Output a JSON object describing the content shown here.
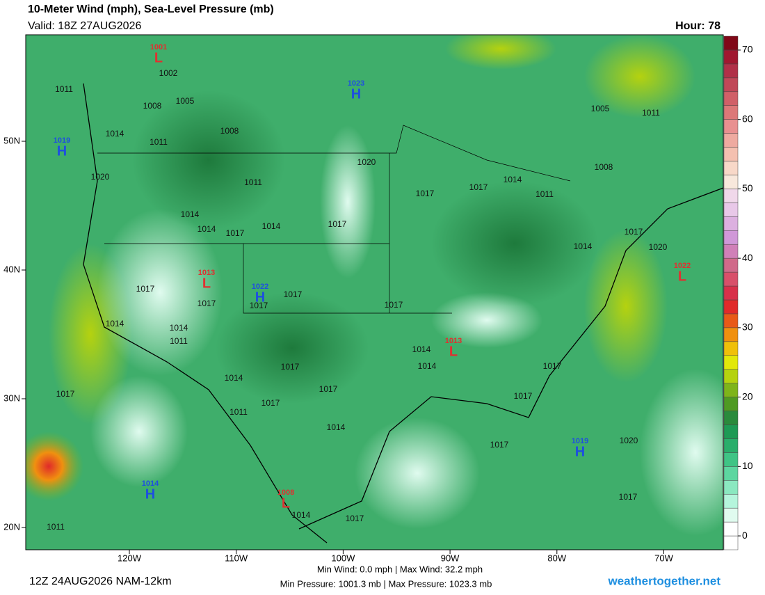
{
  "header": {
    "title": "10-Meter Wind (mph), Sea-Level Pressure (mb)",
    "valid": "Valid: 18Z 27AUG2026",
    "hour": "Hour: 78"
  },
  "map": {
    "lon_ticks": [
      {
        "value": -120,
        "label": "120W"
      },
      {
        "value": -110,
        "label": "110W"
      },
      {
        "value": -100,
        "label": "100W"
      },
      {
        "value": -90,
        "label": "90W"
      },
      {
        "value": -80,
        "label": "80W"
      },
      {
        "value": -70,
        "label": "70W"
      }
    ],
    "lat_ticks": [
      {
        "value": 50,
        "label": "50N"
      },
      {
        "value": 40,
        "label": "40N"
      },
      {
        "value": 30,
        "label": "30N"
      },
      {
        "value": 20,
        "label": "20N"
      }
    ],
    "centers": [
      {
        "kind": "L",
        "value": "1001"
      },
      {
        "kind": "H",
        "value": "1023"
      },
      {
        "kind": "H",
        "value": "1019"
      },
      {
        "kind": "L",
        "value": "1013"
      },
      {
        "kind": "H",
        "value": "1022"
      },
      {
        "kind": "L",
        "value": "1022"
      },
      {
        "kind": "L",
        "value": "1013"
      },
      {
        "kind": "H",
        "value": "1019"
      },
      {
        "kind": "H",
        "value": "1014"
      },
      {
        "kind": "L",
        "value": "1008"
      }
    ],
    "isobar_labels": [
      "1002",
      "1011",
      "1005",
      "1008",
      "1014",
      "1011",
      "1008",
      "1020",
      "1011",
      "1014",
      "1014",
      "1017",
      "1014",
      "1017",
      "1020",
      "1017",
      "1017",
      "1014",
      "1011",
      "1005",
      "1011",
      "1008",
      "1017",
      "1014",
      "1020",
      "1017",
      "1017",
      "1017",
      "1017",
      "1017",
      "1014",
      "1014",
      "1011",
      "1014",
      "1014",
      "1017",
      "1014",
      "1017",
      "1017",
      "1011",
      "1014",
      "1017",
      "1017",
      "1017",
      "1017",
      "1020",
      "1017",
      "1014",
      "1017",
      "1011"
    ]
  },
  "colorbar": {
    "lim": [
      -2,
      72
    ],
    "ticks": [
      0,
      10,
      20,
      30,
      40,
      50,
      60,
      70
    ],
    "colors": [
      "#ffffff",
      "#ffffff",
      "#e0fbef",
      "#b5f5dc",
      "#8be8c0",
      "#5dd6a0",
      "#3fc485",
      "#2aae6b",
      "#1e9a55",
      "#2a8a3c",
      "#4f9a22",
      "#7eb41a",
      "#b5d20f",
      "#e2e80a",
      "#f0c00a",
      "#f0900f",
      "#e85a18",
      "#e02a2a",
      "#d8304a",
      "#d8506a",
      "#d06a8a",
      "#d080b8",
      "#d098d8",
      "#dcb0e0",
      "#e8c8e8",
      "#f0d8ea",
      "#f8e8dc",
      "#f8d8c8",
      "#f4c0b0",
      "#eeaaa0",
      "#e89090",
      "#dc7878",
      "#d06068",
      "#c04858",
      "#b03048",
      "#a01830",
      "#800818"
    ]
  },
  "footer": {
    "run": "12Z 24AUG2026 NAM-12km",
    "wind": "Min Wind:  0.0 mph | Max Wind: 32.2 mph",
    "pressure": "Min Pressure: 1001.3 mb | Max Pressure: 1023.3 mb",
    "site": "weathertogether.net"
  }
}
